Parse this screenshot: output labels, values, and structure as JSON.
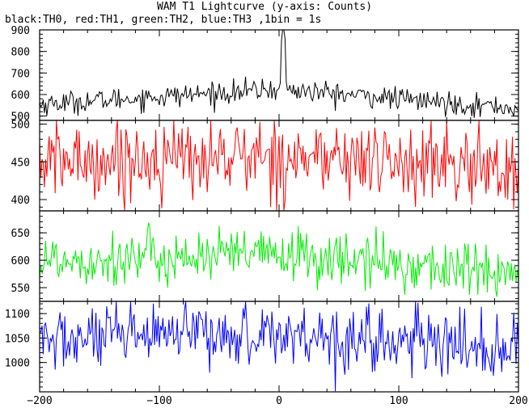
{
  "title": "WAM T1 Lightcurve (y-axis: Counts)",
  "subtitle": "black:TH0, red:TH1, green:TH2, blue:TH3 ,1bin = 1s",
  "chart_data": {
    "type": "line",
    "x": {
      "min": -200,
      "max": 200,
      "step": 1,
      "ticks": [
        -200,
        -100,
        0,
        100,
        200
      ]
    },
    "panels": [
      {
        "series": "TH0",
        "color": "#000000",
        "ylim": [
          480,
          900
        ],
        "ticks": [
          500,
          600,
          700,
          800,
          900
        ],
        "mean_start": 555,
        "mean_peak": 625,
        "mean_end": 535,
        "noise": 26,
        "spike": {
          "x": 2,
          "values": [
            850,
            900,
            900,
            860
          ]
        }
      },
      {
        "series": "TH1",
        "color": "#ff0000",
        "ylim": [
          385,
          505
        ],
        "ticks": [
          400,
          450,
          500
        ],
        "mean_start": 450,
        "mean_peak": 458,
        "mean_end": 440,
        "noise": 26
      },
      {
        "series": "TH2",
        "color": "#00ee00",
        "ylim": [
          525,
          690
        ],
        "ticks": [
          550,
          600,
          650
        ],
        "mean_start": 600,
        "mean_peak": 610,
        "mean_end": 575,
        "noise": 25
      },
      {
        "series": "TH3",
        "color": "#0000ff",
        "ylim": [
          940,
          1125
        ],
        "ticks": [
          1000,
          1050,
          1100
        ],
        "mean_start": 1045,
        "mean_peak": 1060,
        "mean_end": 1025,
        "noise": 33
      }
    ]
  }
}
